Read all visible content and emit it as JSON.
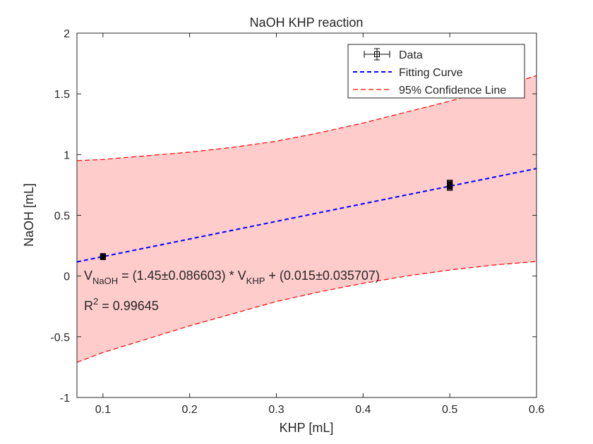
{
  "chart_data": {
    "type": "scatter",
    "title": "NaOH KHP reaction",
    "xlabel": "KHP [mL]",
    "ylabel": "NaOH [mL]",
    "xlim": [
      0.07,
      0.6
    ],
    "ylim": [
      -1,
      2
    ],
    "xticks": [
      0.1,
      0.2,
      0.3,
      0.4,
      0.5,
      0.6
    ],
    "xtick_labels": [
      "0.1",
      "0.2",
      "0.3",
      "0.4",
      "0.5",
      "0.6"
    ],
    "yticks": [
      -1,
      -0.5,
      0,
      0.5,
      1,
      1.5,
      2
    ],
    "ytick_labels": [
      "-1",
      "-0.5",
      "0",
      "0.5",
      "1",
      "1.5",
      "2"
    ],
    "grid": false,
    "legend_position": "top-right",
    "series": [
      {
        "name": "Data",
        "kind": "errorbar",
        "color": "#000000",
        "marker": "square",
        "points": [
          {
            "x": 0.1,
            "y": 0.155,
            "xerr": 0.0025,
            "yerr": 0.012
          },
          {
            "x": 0.1,
            "y": 0.16,
            "xerr": 0.0025,
            "yerr": 0.012
          },
          {
            "x": 0.1,
            "y": 0.165,
            "xerr": 0.0025,
            "yerr": 0.012
          },
          {
            "x": 0.5,
            "y": 0.725,
            "xerr": 0.0025,
            "yerr": 0.012
          },
          {
            "x": 0.5,
            "y": 0.74,
            "xerr": 0.0025,
            "yerr": 0.012
          },
          {
            "x": 0.5,
            "y": 0.755,
            "xerr": 0.0025,
            "yerr": 0.012
          },
          {
            "x": 0.5,
            "y": 0.77,
            "xerr": 0.0025,
            "yerr": 0.012
          }
        ]
      },
      {
        "name": "Fitting Curve",
        "kind": "line",
        "color": "#0000ff",
        "dash": "dashed",
        "slope": 1.45,
        "intercept": 0.015
      },
      {
        "name": "95% Confidence Line",
        "kind": "band",
        "color": "#ff0000",
        "fill": "#ffcccc",
        "dash": "dashed",
        "upper": [
          {
            "x": 0.07,
            "y": 0.95
          },
          {
            "x": 0.1,
            "y": 0.96
          },
          {
            "x": 0.15,
            "y": 0.99
          },
          {
            "x": 0.2,
            "y": 1.02
          },
          {
            "x": 0.25,
            "y": 1.06
          },
          {
            "x": 0.3,
            "y": 1.11
          },
          {
            "x": 0.35,
            "y": 1.18
          },
          {
            "x": 0.4,
            "y": 1.26
          },
          {
            "x": 0.45,
            "y": 1.35
          },
          {
            "x": 0.5,
            "y": 1.44
          },
          {
            "x": 0.55,
            "y": 1.54
          },
          {
            "x": 0.6,
            "y": 1.65
          }
        ],
        "lower": [
          {
            "x": 0.07,
            "y": -0.71
          },
          {
            "x": 0.1,
            "y": -0.63
          },
          {
            "x": 0.15,
            "y": -0.52
          },
          {
            "x": 0.2,
            "y": -0.41
          },
          {
            "x": 0.25,
            "y": -0.31
          },
          {
            "x": 0.3,
            "y": -0.21
          },
          {
            "x": 0.35,
            "y": -0.13
          },
          {
            "x": 0.4,
            "y": -0.06
          },
          {
            "x": 0.45,
            "y": 0.0
          },
          {
            "x": 0.5,
            "y": 0.05
          },
          {
            "x": 0.55,
            "y": 0.09
          },
          {
            "x": 0.6,
            "y": 0.12
          }
        ]
      }
    ],
    "annotations": {
      "equation": {
        "v1": "V",
        "sub1": "NaOH",
        "mid": " = (1.45±0.086603) * V",
        "sub2": "KHP",
        "end": " + (0.015±0.035707)"
      },
      "r_squared": {
        "prefix": "R",
        "sup": "2",
        "suffix": " = 0.99645"
      }
    }
  }
}
